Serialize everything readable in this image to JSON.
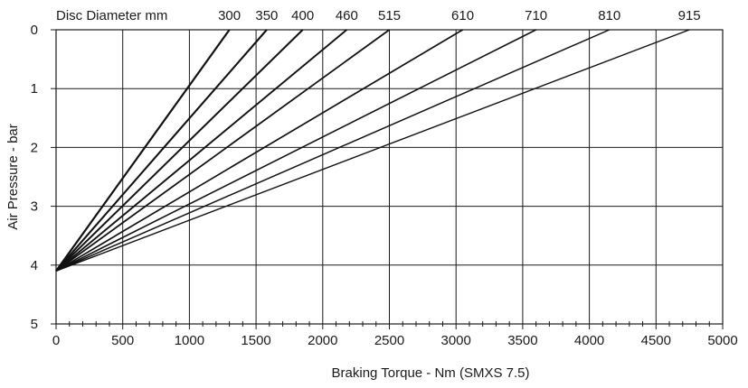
{
  "chart_data": {
    "type": "line",
    "xlabel": "Braking Torque - Nm (SMXS 7.5)",
    "ylabel": "Air Pressure - bar",
    "top_axis_label": "Disc Diameter mm",
    "xlim": [
      0,
      5000
    ],
    "ylim": [
      0,
      5
    ],
    "y_inverted": true,
    "grid": true,
    "x_ticks": [
      "0",
      "500",
      "1000",
      "1500",
      "2000",
      "2500",
      "3000",
      "3500",
      "4000",
      "4500",
      "5000"
    ],
    "y_ticks": [
      "0",
      "1",
      "2",
      "3",
      "4",
      "5"
    ],
    "series": [
      {
        "name": "300",
        "x": [
          0,
          1300
        ],
        "y": [
          4.1,
          0
        ]
      },
      {
        "name": "350",
        "x": [
          0,
          1580
        ],
        "y": [
          4.1,
          0
        ]
      },
      {
        "name": "400",
        "x": [
          0,
          1850
        ],
        "y": [
          4.1,
          0
        ]
      },
      {
        "name": "460",
        "x": [
          0,
          2180
        ],
        "y": [
          4.1,
          0
        ]
      },
      {
        "name": "515",
        "x": [
          0,
          2500
        ],
        "y": [
          4.1,
          0
        ]
      },
      {
        "name": "610",
        "x": [
          0,
          3050
        ],
        "y": [
          4.1,
          0
        ]
      },
      {
        "name": "710",
        "x": [
          0,
          3600
        ],
        "y": [
          4.1,
          0
        ]
      },
      {
        "name": "810",
        "x": [
          0,
          4150
        ],
        "y": [
          4.1,
          0
        ]
      },
      {
        "name": "915",
        "x": [
          0,
          4750
        ],
        "y": [
          4.1,
          0
        ]
      }
    ]
  }
}
